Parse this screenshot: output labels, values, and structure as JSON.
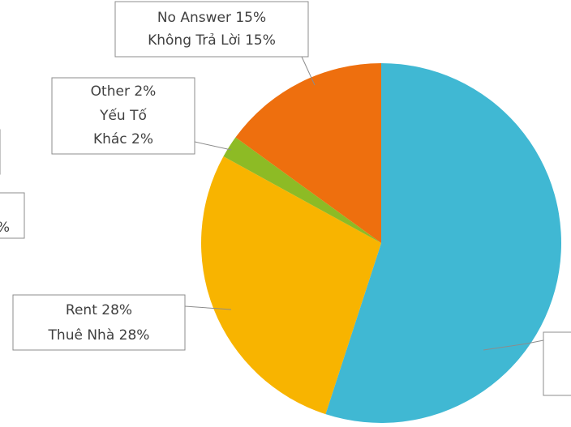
{
  "chart_data": {
    "type": "pie",
    "values": [
      55,
      28,
      2,
      15
    ],
    "labels": [
      null,
      [
        "Rent 28%",
        "Thuê Nhà 28%"
      ],
      [
        "Other 2%",
        "Yếu Tố",
        "Khác 2%"
      ],
      [
        "No Answer 15%",
        "Không Trả Lời 15%"
      ]
    ],
    "colors": [
      "#40b8d3",
      "#f8b400",
      "#8dbb25",
      "#ee6f0e"
    ],
    "cropped_text": [
      "%"
    ]
  }
}
